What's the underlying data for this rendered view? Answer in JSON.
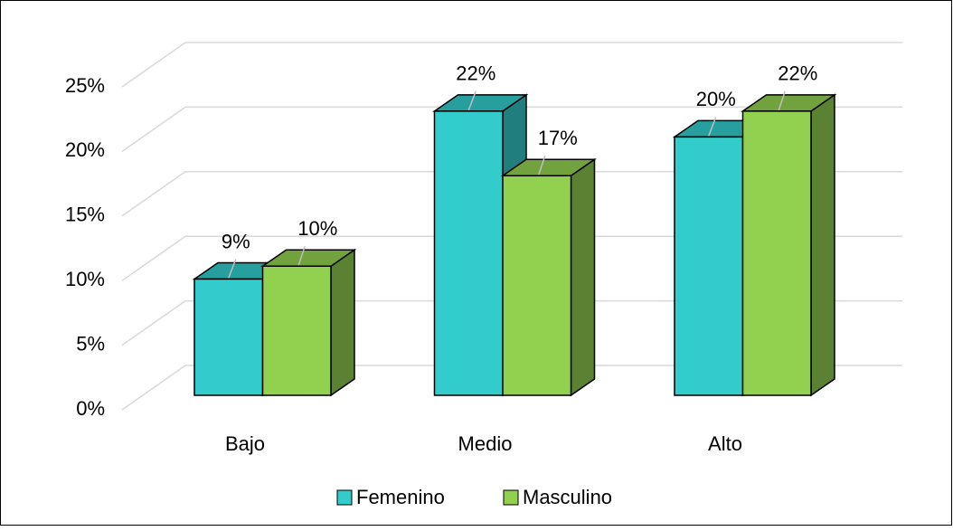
{
  "chart_data": {
    "type": "bar3d",
    "categories": [
      "Bajo",
      "Medio",
      "Alto"
    ],
    "series": [
      {
        "name": "Femenino",
        "color": "#33CCCC",
        "values": [
          9,
          22,
          20
        ],
        "value_labels": [
          "9%",
          "22%",
          "20%"
        ]
      },
      {
        "name": "Masculino",
        "color": "#92D050",
        "values": [
          10,
          17,
          22
        ],
        "value_labels": [
          "10%",
          "17%",
          "22%"
        ]
      }
    ],
    "ylim": [
      0,
      25
    ],
    "yticks": [
      {
        "value": 0,
        "label": "0%"
      },
      {
        "value": 5,
        "label": "5%"
      },
      {
        "value": 10,
        "label": "10%"
      },
      {
        "value": 15,
        "label": "15%"
      },
      {
        "value": 20,
        "label": "20%"
      },
      {
        "value": 25,
        "label": "25%"
      }
    ],
    "grid": true,
    "legend": "bottom"
  }
}
